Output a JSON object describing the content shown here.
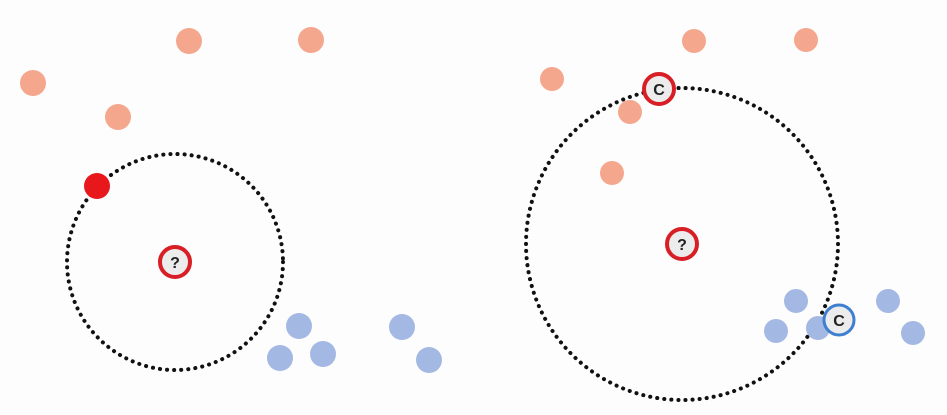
{
  "colors": {
    "background": "#fdfdfd",
    "red_class_light": "#f4a78d",
    "red_class_highlight": "#e8171b",
    "blue_class": "#a3b8e3",
    "query_ring": "#d81f26",
    "query_fill": "#ececec",
    "blue_ring": "#3f7fd0",
    "boundary": "#111111"
  },
  "panels": [
    {
      "id": "left",
      "query": {
        "label": "?",
        "icon": "question-mark-icon"
      },
      "highlight": {
        "type": "nearest-neighbor-dot"
      },
      "boundary": "dotted-circle"
    },
    {
      "id": "right",
      "query": {
        "label": "?",
        "icon": "question-mark-icon"
      },
      "candidates": [
        {
          "label": "C",
          "class": "red"
        },
        {
          "label": "C",
          "class": "blue"
        }
      ],
      "boundary": "dotted-circle"
    }
  ]
}
